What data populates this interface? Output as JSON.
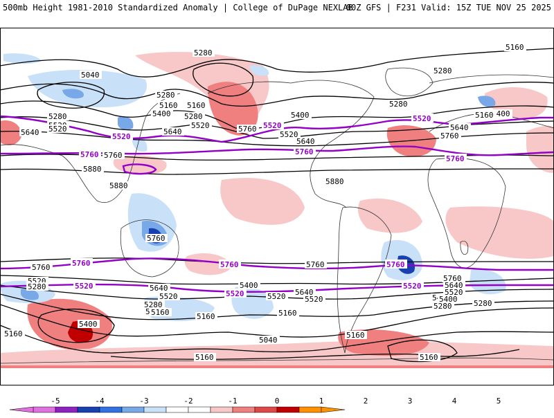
{
  "header": {
    "left_title": "500mb Height 1981-2010 Standardized Anomaly | College of DuPage NEXLAB",
    "right_title": "00Z GFS | F231 Valid: 15Z TUE NOV 25 2025"
  },
  "colors": {
    "purple_contour": "#9300c8",
    "black_contour": "#000000",
    "warm_light": "#f8c8c8",
    "warm_mid": "#f08080",
    "warm_strong": "#c00000",
    "cool_light": "#c8e0f8",
    "cool_mid": "#78a8e8",
    "cool_strong": "#1840b0"
  },
  "contour_labels": {
    "black": [
      "5040",
      "5280",
      "5160",
      "5280",
      "5160",
      "5400",
      "5280",
      "5520",
      "5640",
      "5760",
      "5400",
      "5520",
      "5640",
      "5520",
      "5280",
      "5280",
      "5400",
      "5640",
      "5760",
      "5880",
      "5880",
      "5160",
      "5280",
      "5520",
      "5640",
      "5760",
      "5880",
      "5760",
      "5760",
      "5760",
      "5520",
      "5280",
      "5640",
      "5520",
      "5280",
      "5040",
      "5160",
      "5400",
      "5160",
      "5400",
      "5520",
      "5640",
      "5520",
      "5400",
      "5280",
      "5040",
      "5160",
      "5160",
      "5760",
      "5640",
      "5520",
      "5400",
      "5280",
      "5160",
      "5160",
      "5160",
      "5160"
    ],
    "purple": [
      "5520",
      "5520",
      "5520",
      "5760",
      "5760",
      "5760",
      "5760",
      "5760",
      "5760",
      "5520",
      "5520",
      "5520"
    ]
  },
  "colorbar": {
    "ticks": [
      "-5",
      "-4",
      "-3",
      "-2",
      "-1",
      "0",
      "1",
      "2",
      "3",
      "4",
      "5"
    ],
    "colors": [
      "#e070e0",
      "#9020c0",
      "#1840b0",
      "#3070e0",
      "#78a8e8",
      "#c8e0f8",
      "#ffffff",
      "#ffffff",
      "#f8c8c8",
      "#f08080",
      "#e04848",
      "#c00000",
      "#ff9000"
    ]
  }
}
